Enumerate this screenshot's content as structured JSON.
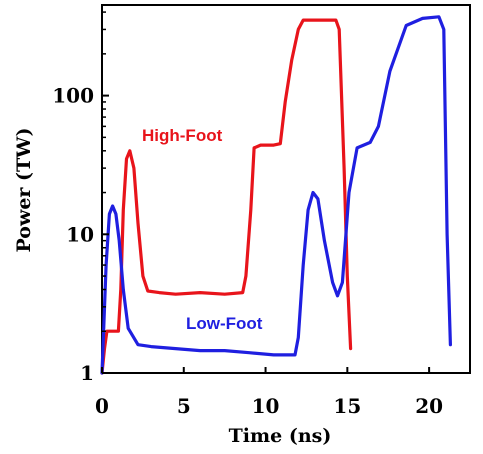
{
  "chart_data": {
    "type": "line",
    "xlabel": "Time (ns)",
    "ylabel": "Power (TW)",
    "xlim": [
      0,
      22.5
    ],
    "ylim": [
      1,
      450
    ],
    "y_scale": "log",
    "grid": false,
    "x_ticks": [
      0,
      5,
      10,
      15,
      20
    ],
    "x_tick_labels": [
      "0",
      "5",
      "10",
      "15",
      "20"
    ],
    "y_ticks": [
      1,
      10,
      100
    ],
    "y_tick_labels": [
      "1",
      "10",
      "100"
    ],
    "series": [
      {
        "name": "High-Foot",
        "color": "#e8141b",
        "points": [
          [
            0.0,
            1.0
          ],
          [
            0.15,
            1.5
          ],
          [
            0.3,
            2.0
          ],
          [
            0.6,
            2.0
          ],
          [
            1.0,
            2.0
          ],
          [
            1.15,
            4.0
          ],
          [
            1.3,
            15.0
          ],
          [
            1.5,
            35.0
          ],
          [
            1.7,
            40.0
          ],
          [
            1.95,
            30.0
          ],
          [
            2.2,
            12.0
          ],
          [
            2.5,
            5.0
          ],
          [
            2.8,
            3.9
          ],
          [
            3.5,
            3.8
          ],
          [
            4.5,
            3.7
          ],
          [
            6.0,
            3.8
          ],
          [
            7.5,
            3.7
          ],
          [
            8.6,
            3.8
          ],
          [
            8.8,
            5.0
          ],
          [
            9.1,
            15.0
          ],
          [
            9.3,
            42.0
          ],
          [
            9.7,
            44.0
          ],
          [
            10.5,
            44.0
          ],
          [
            10.9,
            45.0
          ],
          [
            11.2,
            90.0
          ],
          [
            11.6,
            180.0
          ],
          [
            12.0,
            300.0
          ],
          [
            12.3,
            350.0
          ],
          [
            13.5,
            350.0
          ],
          [
            14.3,
            350.0
          ],
          [
            14.5,
            300.0
          ],
          [
            14.8,
            30.0
          ],
          [
            15.0,
            5.0
          ],
          [
            15.2,
            1.5
          ]
        ]
      },
      {
        "name": "Low-Foot",
        "color": "#1f1fe0",
        "points": [
          [
            0.0,
            1.0
          ],
          [
            0.1,
            2.0
          ],
          [
            0.25,
            6.0
          ],
          [
            0.45,
            14.0
          ],
          [
            0.65,
            16.0
          ],
          [
            0.85,
            14.0
          ],
          [
            1.05,
            9.0
          ],
          [
            1.3,
            4.0
          ],
          [
            1.6,
            2.1
          ],
          [
            2.2,
            1.6
          ],
          [
            3.0,
            1.55
          ],
          [
            4.5,
            1.5
          ],
          [
            6.0,
            1.45
          ],
          [
            7.5,
            1.45
          ],
          [
            9.0,
            1.4
          ],
          [
            10.5,
            1.35
          ],
          [
            11.8,
            1.35
          ],
          [
            12.0,
            1.8
          ],
          [
            12.3,
            6.0
          ],
          [
            12.6,
            15.0
          ],
          [
            12.9,
            20.0
          ],
          [
            13.2,
            18.0
          ],
          [
            13.6,
            9.0
          ],
          [
            14.1,
            4.5
          ],
          [
            14.4,
            3.6
          ],
          [
            14.7,
            4.5
          ],
          [
            15.1,
            20.0
          ],
          [
            15.6,
            42.0
          ],
          [
            16.4,
            46.0
          ],
          [
            16.9,
            60.0
          ],
          [
            17.6,
            150.0
          ],
          [
            18.6,
            320.0
          ],
          [
            19.6,
            360.0
          ],
          [
            20.6,
            370.0
          ],
          [
            20.9,
            300.0
          ],
          [
            21.1,
            10.0
          ],
          [
            21.3,
            1.6
          ]
        ]
      }
    ]
  }
}
